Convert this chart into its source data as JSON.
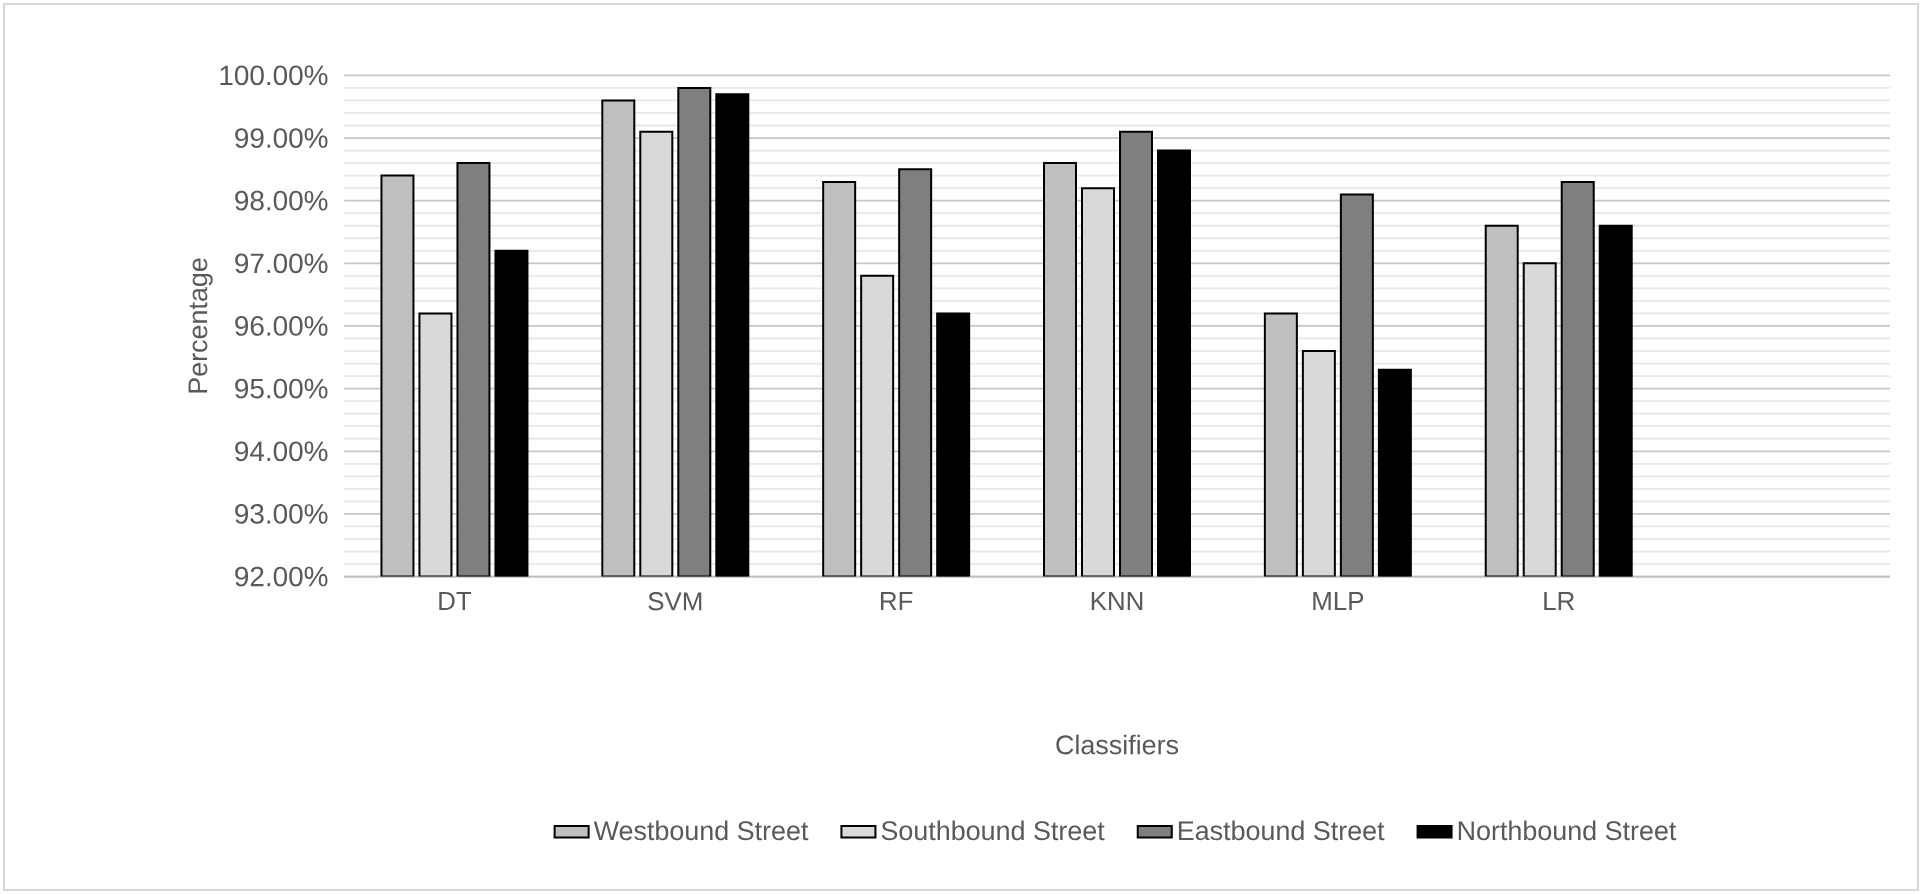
{
  "chart_data": {
    "type": "bar",
    "xlabel": "Classifiers",
    "ylabel": "Percentage",
    "categories": [
      "DT",
      "SVM",
      "RF",
      "KNN",
      "MLP",
      "LR",
      null
    ],
    "series": [
      {
        "name": "Westbound Street",
        "color": "#bfbfbf",
        "values": [
          98.4,
          99.6,
          98.3,
          98.6,
          96.2,
          97.6,
          null
        ]
      },
      {
        "name": "Southbound Street",
        "color": "#d9d9d9",
        "values": [
          96.2,
          99.1,
          96.8,
          98.2,
          95.6,
          97.0,
          null
        ]
      },
      {
        "name": "Eastbound  Street",
        "color": "#7f7f7f",
        "values": [
          98.6,
          99.8,
          98.5,
          99.1,
          98.1,
          98.3,
          null
        ]
      },
      {
        "name": "Northbound Street",
        "color": "#000000",
        "values": [
          97.2,
          99.7,
          96.2,
          98.8,
          95.3,
          97.6,
          null
        ]
      }
    ],
    "ylim": [
      92,
      100
    ],
    "yticks": [
      {
        "value": 92,
        "label": "92.00%"
      },
      {
        "value": 93,
        "label": "93.00%"
      },
      {
        "value": 94,
        "label": "94.00%"
      },
      {
        "value": 95,
        "label": "95.00%"
      },
      {
        "value": 96,
        "label": "96.00%"
      },
      {
        "value": 97,
        "label": "97.00%"
      },
      {
        "value": 98,
        "label": "98.00%"
      },
      {
        "value": 99,
        "label": "99.00%"
      },
      {
        "value": 100,
        "label": "100.00%"
      }
    ],
    "grid": "y",
    "legend": "bottom"
  }
}
